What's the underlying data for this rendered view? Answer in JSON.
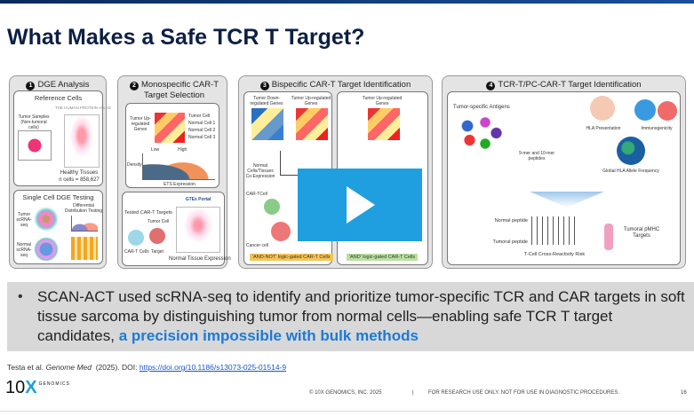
{
  "title": "What Makes a Safe TCR T Target?",
  "panels": [
    {
      "num": "1",
      "title": "DGE Analysis",
      "sub1": "Reference Cells",
      "tumor": "Tumor Samples (Non-tumoral cells)",
      "hpa": "THE HUMAN PROTEIN ATLAS",
      "healthy": "Healthy Tissues",
      "ncells": "n cells = 858,627",
      "sub2": "Single Cell DGE Testing",
      "tumor_seq": "Tumor scRNA-seq",
      "normal_seq": "Normal scRNA-seq",
      "diff": "Differential Distribution Testing"
    },
    {
      "num": "2",
      "title": "Monospecific CAR-T Target Selection",
      "upgenes": "Tumor Up-regulated Genes",
      "low": "Low",
      "high": "High",
      "density": "Density",
      "expr": "ETS Expression",
      "legend": [
        "Tumor Cell",
        "Normal Cell 1",
        "Normal Cell 2",
        "Normal Cell 3"
      ],
      "tested": "Tested CAR-T Targets",
      "tumor_cell": "Tumor Cell",
      "cart": "CAR-T Cells",
      "target": "Target",
      "normal_expr": "Normal Tissue Expression",
      "gtex": "GTEx Portal"
    },
    {
      "num": "3",
      "title": "Bispecific CAR-T Target Identification",
      "down": "Tumor Down-regulated Genes",
      "up": "Tumor Up-regulated Genes",
      "up2": "Tumor Up-regulated Genes",
      "coexp": "Normal Cells/Tissues Co-Expression",
      "cartcell": "CAR-TCell",
      "cancer": "Cancer cell",
      "andnot": "'AND-NOT' logic-gated CAR-T Cells",
      "and": "'AND' logic-gated CAR-T Cells"
    },
    {
      "num": "4",
      "title": "TCR-T/PC-CAR-T Target Identification",
      "antigens": "Tumor-specific Antigens",
      "peptides": "9-mer and 10-mer peptides",
      "hla": "HLA Presentation",
      "immuno": "Immunogenicity",
      "global": "Global HLA Allele Frequency",
      "normal_pep": "Normal peptide",
      "tumoral_pep": "Tumoral peptide",
      "risk": "T-Cell Cross-Reactivity Risk",
      "targets": "Tumoral pMHC Targets"
    }
  ],
  "video": {
    "icon": "play-icon",
    "color": "#1f9fe0"
  },
  "bullet": {
    "text": "SCAN-ACT used scRNA-seq to identify and prioritize tumor-specific TCR and CAR targets in soft tissue sarcoma by distinguishing tumor from normal cells—enabling safe TCR T target candidates,",
    "highlight": "a precision impossible with bulk methods",
    "highlight_color": "#1c7ad6"
  },
  "citation": {
    "authors": "Testa et al.",
    "journal": "Genome Med",
    "year": "(2025). DOI:",
    "doi": "https://doi.org/10.1186/s13073-025-01514-9"
  },
  "footer": {
    "logo_num": "10",
    "logo_x": "X",
    "logo_word": "GENOMICS",
    "copyright": "© 10X GENOMICS, INC. 2025",
    "sep": "|",
    "disclaimer": "FOR RESEARCH USE ONLY. NOT FOR USE IN DIAGNOSTIC PROCEDURES.",
    "page": "16"
  }
}
